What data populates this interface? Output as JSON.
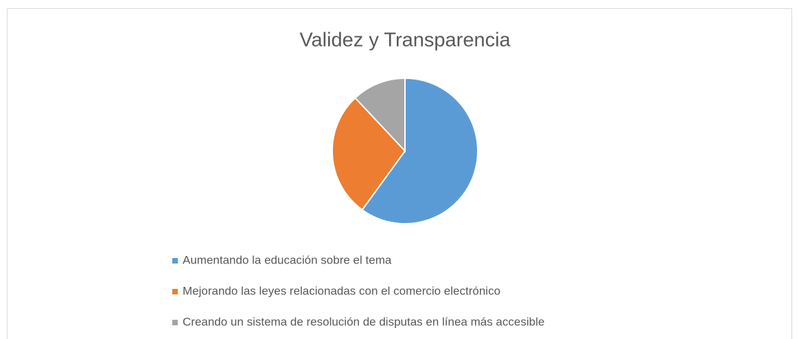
{
  "chart_data": {
    "type": "pie",
    "title": "Validez y Transparencia",
    "categories": [
      "Aumentando la educación sobre el tema",
      "Mejorando las leyes relacionadas con el comercio electrónico",
      "Creando un sistema de resolución de disputas en línea más accesible"
    ],
    "values": [
      60,
      28,
      12
    ],
    "colors": [
      "#5b9bd5",
      "#ed7d31",
      "#a5a5a5"
    ],
    "legend": "bottom"
  }
}
